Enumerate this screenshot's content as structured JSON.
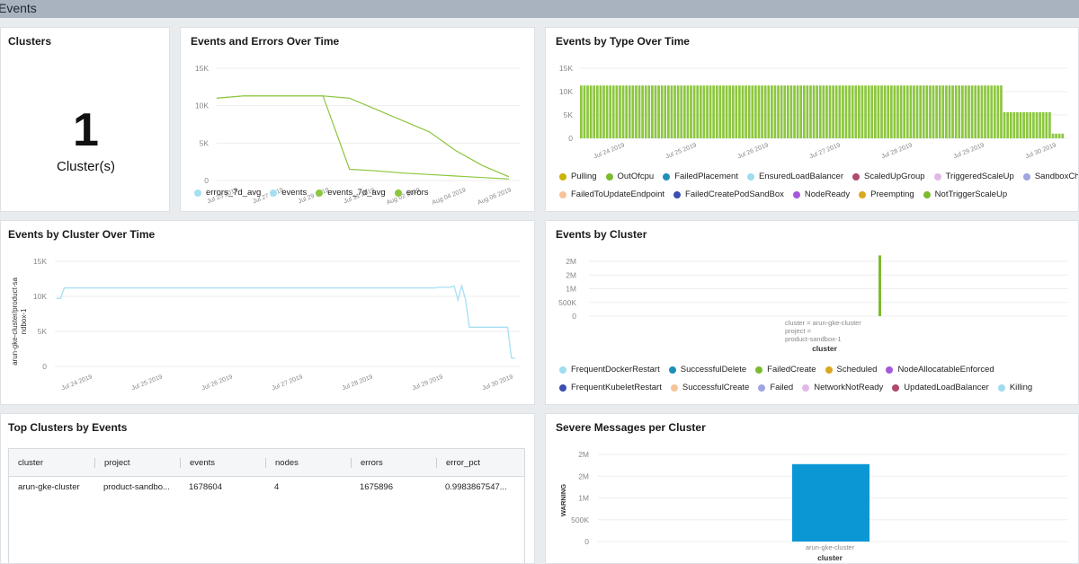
{
  "page_title": "Events",
  "clusters_panel": {
    "title": "Clusters",
    "value": "1",
    "unit": "Cluster(s)"
  },
  "events_errors_panel": {
    "title": "Events and Errors Over Time",
    "y_ticks": [
      "15K",
      "10K",
      "5K",
      "0"
    ],
    "x_ticks": [
      "Jul 25 2019",
      "Jul 27 2019",
      "Jul 29 2019",
      "Jul 31 2019",
      "Aug 02 2019",
      "Aug 04 2019",
      "Aug 06 2019"
    ],
    "legend": [
      {
        "name": "errors_7d_avg",
        "color": "#a6dff2"
      },
      {
        "name": "events",
        "color": "#a6dff2"
      },
      {
        "name": "events_7d_avg",
        "color": "#8cc63f"
      },
      {
        "name": "errors",
        "color": "#8cc63f"
      }
    ]
  },
  "type_panel": {
    "title": "Events by Type Over Time",
    "y_ticks": [
      "15K",
      "10K",
      "5K",
      "0"
    ],
    "x_ticks": [
      "Jul 24 2019",
      "Jul 25 2019",
      "Jul 26 2019",
      "Jul 27 2019",
      "Jul 28 2019",
      "Jul 29 2019",
      "Jul 30 2019"
    ],
    "legend_row1": [
      {
        "name": "Pulling",
        "color": "#c8b400"
      },
      {
        "name": "OutOfcpu",
        "color": "#7cbb2f"
      },
      {
        "name": "FailedPlacement",
        "color": "#1e90b8"
      },
      {
        "name": "EnsuredLoadBalancer",
        "color": "#9fdcef"
      },
      {
        "name": "ScaledUpGroup",
        "color": "#b04a6a"
      },
      {
        "name": "TriggeredScaleUp",
        "color": "#e2b8e8"
      },
      {
        "name": "SandboxChanged",
        "color": "#9fa5de"
      }
    ],
    "legend_row2": [
      {
        "name": "FailedToUpdateEndpoint",
        "color": "#f5c39a"
      },
      {
        "name": "FailedCreatePodSandBox",
        "color": "#3a4fb0"
      },
      {
        "name": "NodeReady",
        "color": "#a558d8"
      },
      {
        "name": "Preempting",
        "color": "#d9a820"
      },
      {
        "name": "NotTriggerScaleUp",
        "color": "#7cbb2f"
      }
    ]
  },
  "cluster_time_panel": {
    "title": "Events by Cluster Over Time",
    "y_label": "arun-gke-cluster/product-sandbox-1",
    "y_ticks": [
      "15K",
      "10K",
      "5K",
      "0"
    ],
    "x_ticks": [
      "Jul 24 2019",
      "Jul 25 2019",
      "Jul 26 2019",
      "Jul 27 2019",
      "Jul 28 2019",
      "Jul 29 2019",
      "Jul 30 2019"
    ]
  },
  "by_cluster_panel": {
    "title": "Events by Cluster",
    "y_ticks": [
      "2M",
      "2M",
      "1M",
      "500K",
      "0"
    ],
    "bar_label_1": "cluster = arun-gke-cluster",
    "bar_label_2": "project =",
    "bar_label_3": "product-sandbox-1",
    "x_label": "cluster",
    "legend_row1": [
      {
        "name": "FrequentDockerRestart",
        "color": "#9fdcef"
      },
      {
        "name": "SuccessfulDelete",
        "color": "#1e90b8"
      },
      {
        "name": "FailedCreate",
        "color": "#7cbb2f"
      },
      {
        "name": "Scheduled",
        "color": "#d9a820"
      },
      {
        "name": "NodeAllocatableEnforced",
        "color": "#a558d8"
      }
    ],
    "legend_row2": [
      {
        "name": "FrequentKubeletRestart",
        "color": "#3a4fb0"
      },
      {
        "name": "SuccessfulCreate",
        "color": "#f5c39a"
      },
      {
        "name": "Failed",
        "color": "#9fa5de"
      },
      {
        "name": "NetworkNotReady",
        "color": "#e2b8e8"
      },
      {
        "name": "UpdatedLoadBalancer",
        "color": "#b04a6a"
      },
      {
        "name": "Killing",
        "color": "#9fdcef"
      }
    ]
  },
  "top_clusters_panel": {
    "title": "Top Clusters by Events",
    "columns": [
      "cluster",
      "project",
      "events",
      "nodes",
      "errors",
      "error_pct"
    ],
    "rows": [
      [
        "arun-gke-cluster",
        "product-sandbo...",
        "1678604",
        "4",
        "1675896",
        "0.9983867547..."
      ]
    ]
  },
  "severe_panel": {
    "title": "Severe Messages per Cluster",
    "y_label": "WARNING",
    "y_ticks": [
      "2M",
      "2M",
      "1M",
      "500K",
      "0"
    ],
    "bar_category": "arun-gke-cluster",
    "x_label": "cluster"
  },
  "chart_data": [
    {
      "type": "line",
      "title": "Events and Errors Over Time",
      "x": [
        "Jul 24 2019",
        "Jul 25 2019",
        "Jul 27 2019",
        "Jul 29 2019",
        "Jul 30 2019",
        "Jul 31 2019",
        "Aug 01 2019",
        "Aug 02 2019",
        "Aug 03 2019",
        "Aug 04 2019",
        "Aug 05 2019",
        "Aug 06 2019"
      ],
      "series": [
        {
          "name": "events",
          "values": [
            11000,
            11300,
            11300,
            11300,
            11300,
            1500,
            1300,
            1000,
            800,
            600,
            400,
            200
          ]
        },
        {
          "name": "events_7d_avg",
          "values": [
            11000,
            11300,
            11300,
            11300,
            11300,
            11000,
            9500,
            8000,
            6500,
            4000,
            2000,
            500
          ]
        }
      ],
      "ylim": [
        0,
        15000
      ]
    },
    {
      "type": "bar",
      "title": "Events by Type Over Time",
      "x": [
        "Jul 24 2019",
        "Jul 25 2019",
        "Jul 26 2019",
        "Jul 27 2019",
        "Jul 28 2019",
        "Jul 29 2019",
        "Jul 30 2019"
      ],
      "series": [
        {
          "name": "FailedCreate",
          "values": [
            11300,
            11300,
            11300,
            11300,
            11300,
            11300,
            5600
          ]
        }
      ],
      "ylim": [
        0,
        15000
      ]
    },
    {
      "type": "line",
      "title": "Events by Cluster Over Time",
      "x": [
        "Jul 24 2019",
        "Jul 25 2019",
        "Jul 26 2019",
        "Jul 27 2019",
        "Jul 28 2019",
        "Jul 29 2019",
        "Jul 30 2019"
      ],
      "series": [
        {
          "name": "arun-gke-cluster/product-sandbox-1",
          "values": [
            11200,
            11200,
            11200,
            11200,
            11200,
            11300,
            5600
          ]
        }
      ],
      "ylim": [
        0,
        15000
      ]
    },
    {
      "type": "bar",
      "title": "Events by Cluster",
      "categories": [
        "arun-gke-cluster"
      ],
      "values": [
        1678604
      ],
      "ylim": [
        0,
        2000000
      ]
    },
    {
      "type": "bar",
      "title": "Severe Messages per Cluster",
      "categories": [
        "arun-gke-cluster"
      ],
      "values": [
        1675896
      ],
      "ylim": [
        0,
        2000000
      ]
    }
  ]
}
